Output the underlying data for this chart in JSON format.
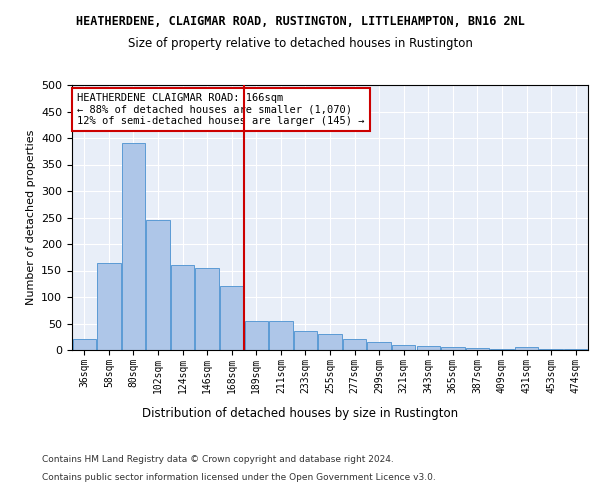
{
  "title": "HEATHERDENE, CLAIGMAR ROAD, RUSTINGTON, LITTLEHAMPTON, BN16 2NL",
  "subtitle": "Size of property relative to detached houses in Rustington",
  "xlabel": "Distribution of detached houses by size in Rustington",
  "ylabel": "Number of detached properties",
  "categories": [
    "36sqm",
    "58sqm",
    "80sqm",
    "102sqm",
    "124sqm",
    "146sqm",
    "168sqm",
    "189sqm",
    "211sqm",
    "233sqm",
    "255sqm",
    "277sqm",
    "299sqm",
    "321sqm",
    "343sqm",
    "365sqm",
    "387sqm",
    "409sqm",
    "431sqm",
    "453sqm",
    "474sqm"
  ],
  "values": [
    20,
    165,
    390,
    245,
    160,
    155,
    120,
    55,
    55,
    35,
    30,
    20,
    15,
    10,
    8,
    5,
    3,
    1,
    5,
    1,
    1
  ],
  "bar_color": "#aec6e8",
  "bar_edge_color": "#5b9bd5",
  "vline_index": 6,
  "vline_color": "#cc0000",
  "annotation_text": "HEATHERDENE CLAIGMAR ROAD: 166sqm\n← 88% of detached houses are smaller (1,070)\n12% of semi-detached houses are larger (145) →",
  "annotation_box_color": "#cc0000",
  "ylim": [
    0,
    500
  ],
  "yticks": [
    0,
    50,
    100,
    150,
    200,
    250,
    300,
    350,
    400,
    450,
    500
  ],
  "bg_color": "#e8eef8",
  "footer_line1": "Contains HM Land Registry data © Crown copyright and database right 2024.",
  "footer_line2": "Contains public sector information licensed under the Open Government Licence v3.0."
}
